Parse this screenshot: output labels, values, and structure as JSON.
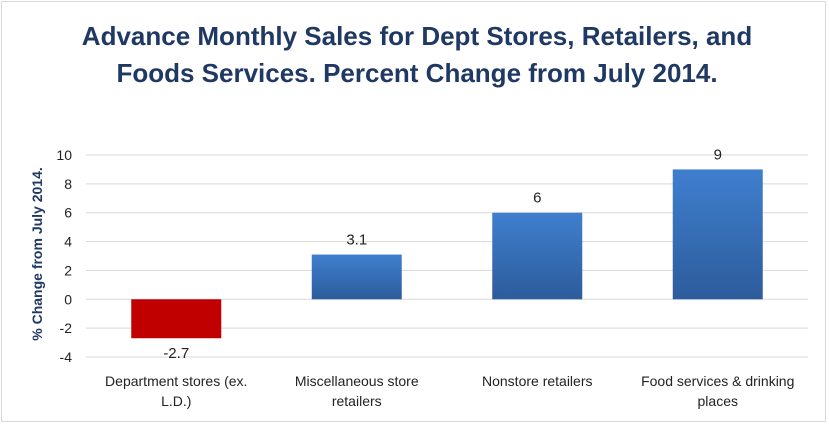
{
  "chart_data": {
    "type": "bar",
    "title": "Advance Monthly Sales for Dept Stores, Retailers, and Foods Services. Percent Change from July 2014.",
    "ylabel": "% Change from July 2014.",
    "xlabel": "",
    "categories": [
      [
        "Department stores (ex.",
        "L.D.)"
      ],
      [
        "Miscellaneous store",
        "retailers"
      ],
      [
        "Nonstore retailers"
      ],
      [
        "Food services & drinking",
        "places"
      ]
    ],
    "values": [
      -2.7,
      3.1,
      6,
      9
    ],
    "data_labels": [
      "-2.7",
      "3.1",
      "6",
      "9"
    ],
    "ylim": [
      -4,
      10
    ],
    "yticks": [
      -4,
      -2,
      0,
      2,
      4,
      6,
      8,
      10
    ],
    "grid": true,
    "legend": "none",
    "colors": {
      "negative": "#c00000",
      "positive": "#3e79c6",
      "positive_dark": "#2f5f9e",
      "title": "#1f3864",
      "grid": "#d9d9d9"
    }
  }
}
